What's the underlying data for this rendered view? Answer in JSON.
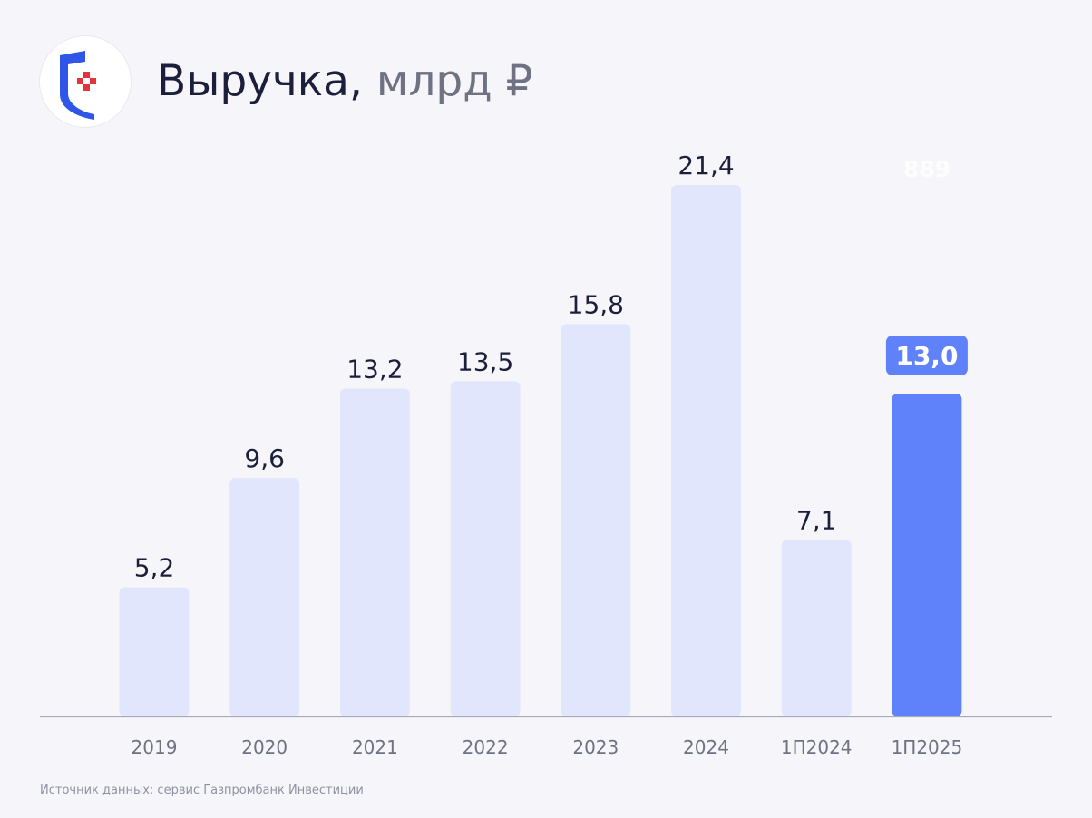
{
  "header": {
    "title_main": "Выручка,",
    "title_unit": "млрд ₽",
    "logo_icon": "shield-logo-icon"
  },
  "watermark_text": "889",
  "footnote": "Источник данных: сервис Газпромбанк Инвестиции",
  "colors": {
    "bar_default": "#e1e6fc",
    "bar_highlight": "#5f82fa",
    "label_default": "#1b1f3b",
    "label_highlight_bg": "#5f82fa",
    "label_highlight_text": "#ffffff",
    "axis_label": "#6e7283",
    "baseline": "#a7aab6",
    "logo_blue": "#2f56e8",
    "logo_red": "#e5323f"
  },
  "chart_data": {
    "type": "bar",
    "title": "Выручка, млрд ₽",
    "xlabel": "",
    "ylabel": "",
    "ylim": [
      0,
      21.4
    ],
    "grid": false,
    "legend": "none",
    "categories": [
      "2019",
      "2020",
      "2021",
      "2022",
      "2023",
      "2024",
      "1П2024",
      "1П2025"
    ],
    "values": [
      5.2,
      9.6,
      13.2,
      13.5,
      15.8,
      21.4,
      7.1,
      13.0
    ],
    "value_labels": [
      "5,2",
      "9,6",
      "13,2",
      "13,5",
      "15,8",
      "21,4",
      "7,1",
      "13,0"
    ],
    "highlight": [
      false,
      false,
      false,
      false,
      false,
      false,
      false,
      true
    ]
  }
}
